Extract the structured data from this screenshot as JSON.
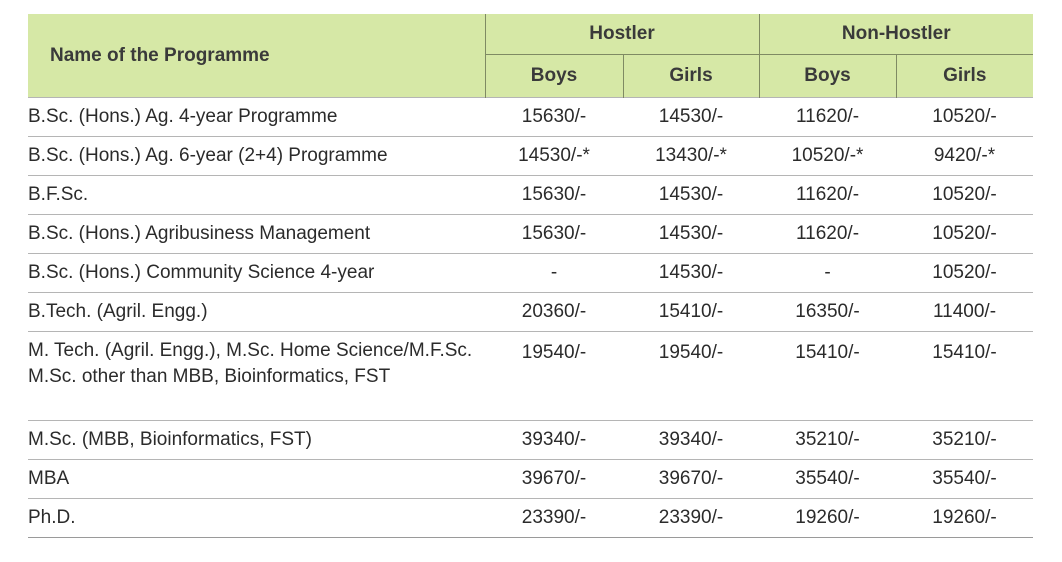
{
  "table": {
    "header": {
      "programme": "Name of the Programme",
      "hostler": "Hostler",
      "non_hostler": "Non-Hostler",
      "boys": "Boys",
      "girls": "Girls"
    },
    "rows": [
      {
        "programme": [
          "B.Sc. (Hons.) Ag. 4-year Programme"
        ],
        "hostler_boys": "15630/-",
        "hostler_girls": "14530/-",
        "nonhostler_boys": "11620/-",
        "nonhostler_girls": "10520/-"
      },
      {
        "programme": [
          "B.Sc. (Hons.) Ag. 6-year (2+4) Programme"
        ],
        "hostler_boys": "14530/-*",
        "hostler_girls": "13430/-*",
        "nonhostler_boys": "10520/-*",
        "nonhostler_girls": "9420/-*"
      },
      {
        "programme": [
          "B.F.Sc."
        ],
        "hostler_boys": "15630/-",
        "hostler_girls": "14530/-",
        "nonhostler_boys": "11620/-",
        "nonhostler_girls": "10520/-"
      },
      {
        "programme": [
          "B.Sc. (Hons.) Agribusiness Management"
        ],
        "hostler_boys": "15630/-",
        "hostler_girls": "14530/-",
        "nonhostler_boys": "11620/-",
        "nonhostler_girls": "10520/-"
      },
      {
        "programme": [
          "B.Sc. (Hons.) Community Science 4-year"
        ],
        "hostler_boys": "-",
        "hostler_girls": "14530/-",
        "nonhostler_boys": "-",
        "nonhostler_girls": "10520/-"
      },
      {
        "programme": [
          "B.Tech. (Agril. Engg.)"
        ],
        "hostler_boys": "20360/-",
        "hostler_girls": "15410/-",
        "nonhostler_boys": "16350/-",
        "nonhostler_girls": "11400/-"
      },
      {
        "programme": [
          "M. Tech. (Agril. Engg.), M.Sc. Home Science/M.F.Sc.",
          "M.Sc. other than MBB, Bioinformatics, FST"
        ],
        "hostler_boys": "19540/-",
        "hostler_girls": "19540/-",
        "nonhostler_boys": "15410/-",
        "nonhostler_girls": "15410/-"
      },
      {
        "programme": [
          "M.Sc. (MBB, Bioinformatics, FST)"
        ],
        "hostler_boys": "39340/-",
        "hostler_girls": "39340/-",
        "nonhostler_boys": "35210/-",
        "nonhostler_girls": "35210/-"
      },
      {
        "programme": [
          "MBA"
        ],
        "hostler_boys": "39670/-",
        "hostler_girls": "39670/-",
        "nonhostler_boys": "35540/-",
        "nonhostler_girls": "35540/-"
      },
      {
        "programme": [
          "Ph.D."
        ],
        "hostler_boys": "23390/-",
        "hostler_girls": "23390/-",
        "nonhostler_boys": "19260/-",
        "nonhostler_girls": "19260/-"
      }
    ]
  }
}
